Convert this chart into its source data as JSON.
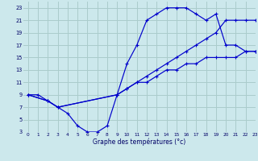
{
  "title": "Graphe des températures (°c)",
  "bg_color": "#cce8ec",
  "grid_color": "#aacccc",
  "line_color": "#0000cc",
  "xlim": [
    -0.5,
    23
  ],
  "ylim": [
    3,
    24
  ],
  "xticks": [
    0,
    1,
    2,
    3,
    4,
    5,
    6,
    7,
    8,
    9,
    10,
    11,
    12,
    13,
    14,
    15,
    16,
    17,
    18,
    19,
    20,
    21,
    22,
    23
  ],
  "yticks": [
    3,
    5,
    7,
    9,
    11,
    13,
    15,
    17,
    19,
    21,
    23
  ],
  "curve1_x": [
    0,
    1,
    2,
    3,
    4,
    5,
    6,
    7,
    8,
    9,
    10,
    11,
    12,
    13,
    14,
    15,
    16,
    17,
    18,
    19,
    20,
    21,
    22,
    23
  ],
  "curve1_y": [
    9,
    9,
    8,
    7,
    6,
    4,
    3,
    3,
    4,
    9,
    14,
    17,
    21,
    22,
    23,
    23,
    23,
    22,
    21,
    22,
    17,
    17,
    16,
    16
  ],
  "curve2_x": [
    0,
    2,
    3,
    9,
    10,
    11,
    12,
    13,
    14,
    15,
    16,
    17,
    18,
    19,
    20,
    21,
    22,
    23
  ],
  "curve2_y": [
    9,
    8,
    7,
    9,
    10,
    11,
    12,
    13,
    14,
    15,
    16,
    17,
    18,
    19,
    21,
    21,
    21,
    21
  ],
  "curve3_x": [
    0,
    2,
    3,
    9,
    10,
    11,
    12,
    13,
    14,
    15,
    16,
    17,
    18,
    19,
    20,
    21,
    22,
    23
  ],
  "curve3_y": [
    9,
    8,
    7,
    9,
    10,
    11,
    11,
    12,
    13,
    13,
    14,
    14,
    15,
    15,
    15,
    15,
    16,
    16
  ]
}
